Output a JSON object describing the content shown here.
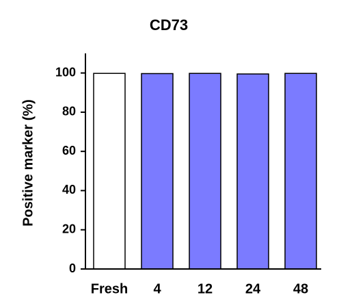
{
  "chart_data": {
    "type": "bar",
    "title": "CD73",
    "ylabel": "Positive marker (%)",
    "categories": [
      "Fresh",
      "4",
      "12",
      "24",
      "48"
    ],
    "values": [
      99.8,
      99.7,
      99.8,
      99.5,
      99.8
    ],
    "colors": [
      "#ffffff",
      "#7b7bff",
      "#7b7bff",
      "#7b7bff",
      "#7b7bff"
    ],
    "ylim": [
      0,
      110
    ],
    "yticks": [
      0,
      20,
      40,
      60,
      80,
      100
    ],
    "grid": false
  }
}
